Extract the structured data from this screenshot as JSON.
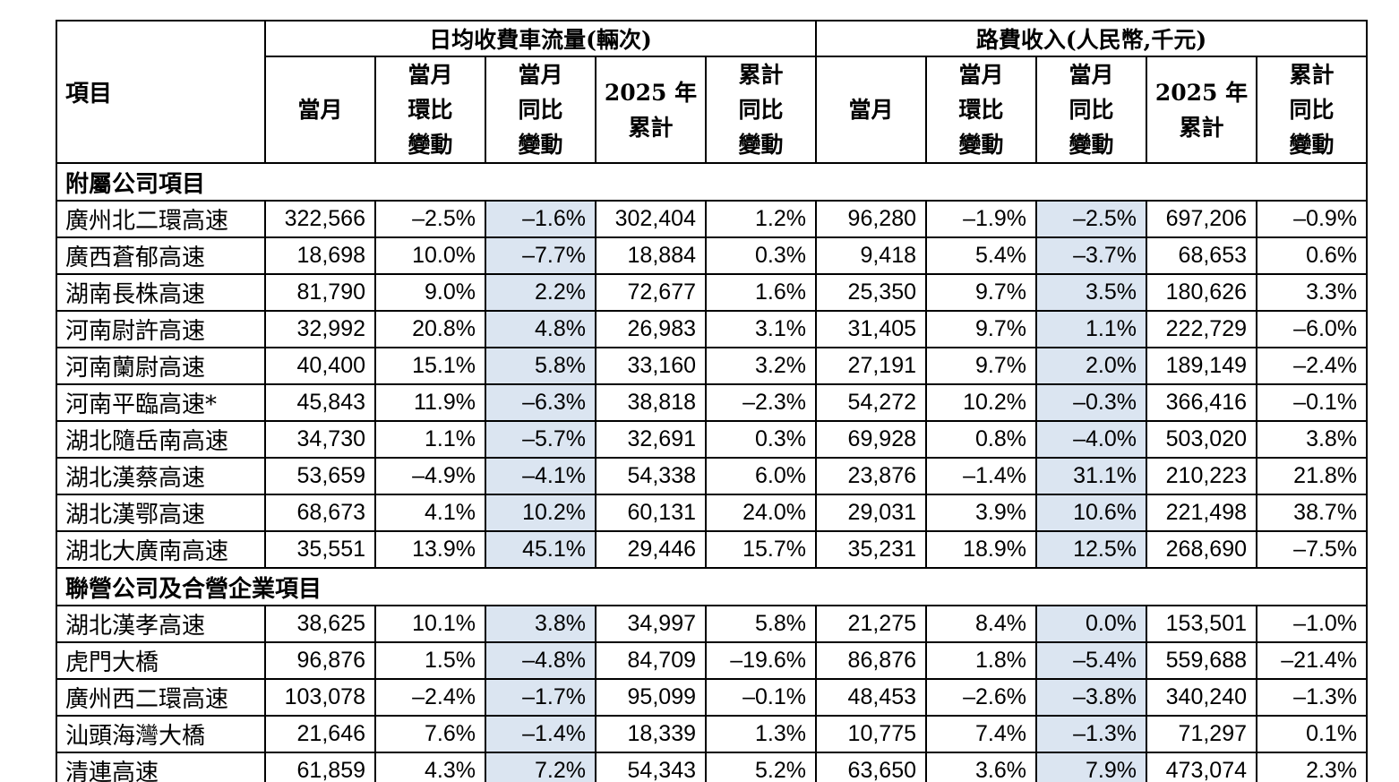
{
  "table": {
    "item_header": "項目",
    "groups": [
      {
        "label": "日均收費車流量(輛次)"
      },
      {
        "label": "路費收入(人民幣,千元)"
      }
    ],
    "sub_headers": [
      "當月",
      "當月\n環比\n變動",
      "當月\n同比\n變動",
      "2025 年\n累計",
      "累計\n同比\n變動",
      "當月",
      "當月\n環比\n變動",
      "當月\n同比\n變動",
      "2025 年\n累計",
      "累計\n同比\n變動"
    ],
    "highlight_columns": [
      2,
      7
    ],
    "highlight_color": "#dbe5f1",
    "sections": [
      {
        "title": "附屬公司項目",
        "rows": [
          {
            "name": "廣州北二環高速",
            "values": [
              "322,566",
              "–2.5%",
              "–1.6%",
              "302,404",
              "1.2%",
              "96,280",
              "–1.9%",
              "–2.5%",
              "697,206",
              "–0.9%"
            ]
          },
          {
            "name": "廣西蒼郁高速",
            "values": [
              "18,698",
              "10.0%",
              "–7.7%",
              "18,884",
              "0.3%",
              "9,418",
              "5.4%",
              "–3.7%",
              "68,653",
              "0.6%"
            ]
          },
          {
            "name": "湖南長株高速",
            "values": [
              "81,790",
              "9.0%",
              "2.2%",
              "72,677",
              "1.6%",
              "25,350",
              "9.7%",
              "3.5%",
              "180,626",
              "3.3%"
            ]
          },
          {
            "name": "河南尉許高速",
            "values": [
              "32,992",
              "20.8%",
              "4.8%",
              "26,983",
              "3.1%",
              "31,405",
              "9.7%",
              "1.1%",
              "222,729",
              "–6.0%"
            ]
          },
          {
            "name": "河南蘭尉高速",
            "values": [
              "40,400",
              "15.1%",
              "5.8%",
              "33,160",
              "3.2%",
              "27,191",
              "9.7%",
              "2.0%",
              "189,149",
              "–2.4%"
            ]
          },
          {
            "name": "河南平臨高速*",
            "values": [
              "45,843",
              "11.9%",
              "–6.3%",
              "38,818",
              "–2.3%",
              "54,272",
              "10.2%",
              "–0.3%",
              "366,416",
              "–0.1%"
            ]
          },
          {
            "name": "湖北隨岳南高速",
            "values": [
              "34,730",
              "1.1%",
              "–5.7%",
              "32,691",
              "0.3%",
              "69,928",
              "0.8%",
              "–4.0%",
              "503,020",
              "3.8%"
            ]
          },
          {
            "name": "湖北漢蔡高速",
            "values": [
              "53,659",
              "–4.9%",
              "–4.1%",
              "54,338",
              "6.0%",
              "23,876",
              "–1.4%",
              "31.1%",
              "210,223",
              "21.8%"
            ]
          },
          {
            "name": "湖北漢鄂高速",
            "values": [
              "68,673",
              "4.1%",
              "10.2%",
              "60,131",
              "24.0%",
              "29,031",
              "3.9%",
              "10.6%",
              "221,498",
              "38.7%"
            ]
          },
          {
            "name": "湖北大廣南高速",
            "values": [
              "35,551",
              "13.9%",
              "45.1%",
              "29,446",
              "15.7%",
              "35,231",
              "18.9%",
              "12.5%",
              "268,690",
              "–7.5%"
            ]
          }
        ]
      },
      {
        "title": "聯營公司及合營企業項目",
        "rows": [
          {
            "name": "湖北漢孝高速",
            "values": [
              "38,625",
              "10.1%",
              "3.8%",
              "34,997",
              "5.8%",
              "21,275",
              "8.4%",
              "0.0%",
              "153,501",
              "–1.0%"
            ]
          },
          {
            "name": "虎門大橋",
            "values": [
              "96,876",
              "1.5%",
              "–4.8%",
              "84,709",
              "–19.6%",
              "86,876",
              "1.8%",
              "–5.4%",
              "559,688",
              "–21.4%"
            ]
          },
          {
            "name": "廣州西二環高速",
            "values": [
              "103,078",
              "–2.4%",
              "–1.7%",
              "95,099",
              "–0.1%",
              "48,453",
              "–2.6%",
              "–3.8%",
              "340,240",
              "–1.3%"
            ]
          },
          {
            "name": "汕頭海灣大橋",
            "values": [
              "21,646",
              "7.6%",
              "–1.4%",
              "18,339",
              "1.3%",
              "10,775",
              "7.4%",
              "–1.3%",
              "71,297",
              "0.1%"
            ]
          },
          {
            "name": "清連高速",
            "values": [
              "61,859",
              "4.3%",
              "7.2%",
              "54,343",
              "5.2%",
              "63,650",
              "3.6%",
              "7.9%",
              "473,074",
              "2.3%"
            ]
          }
        ]
      }
    ]
  }
}
